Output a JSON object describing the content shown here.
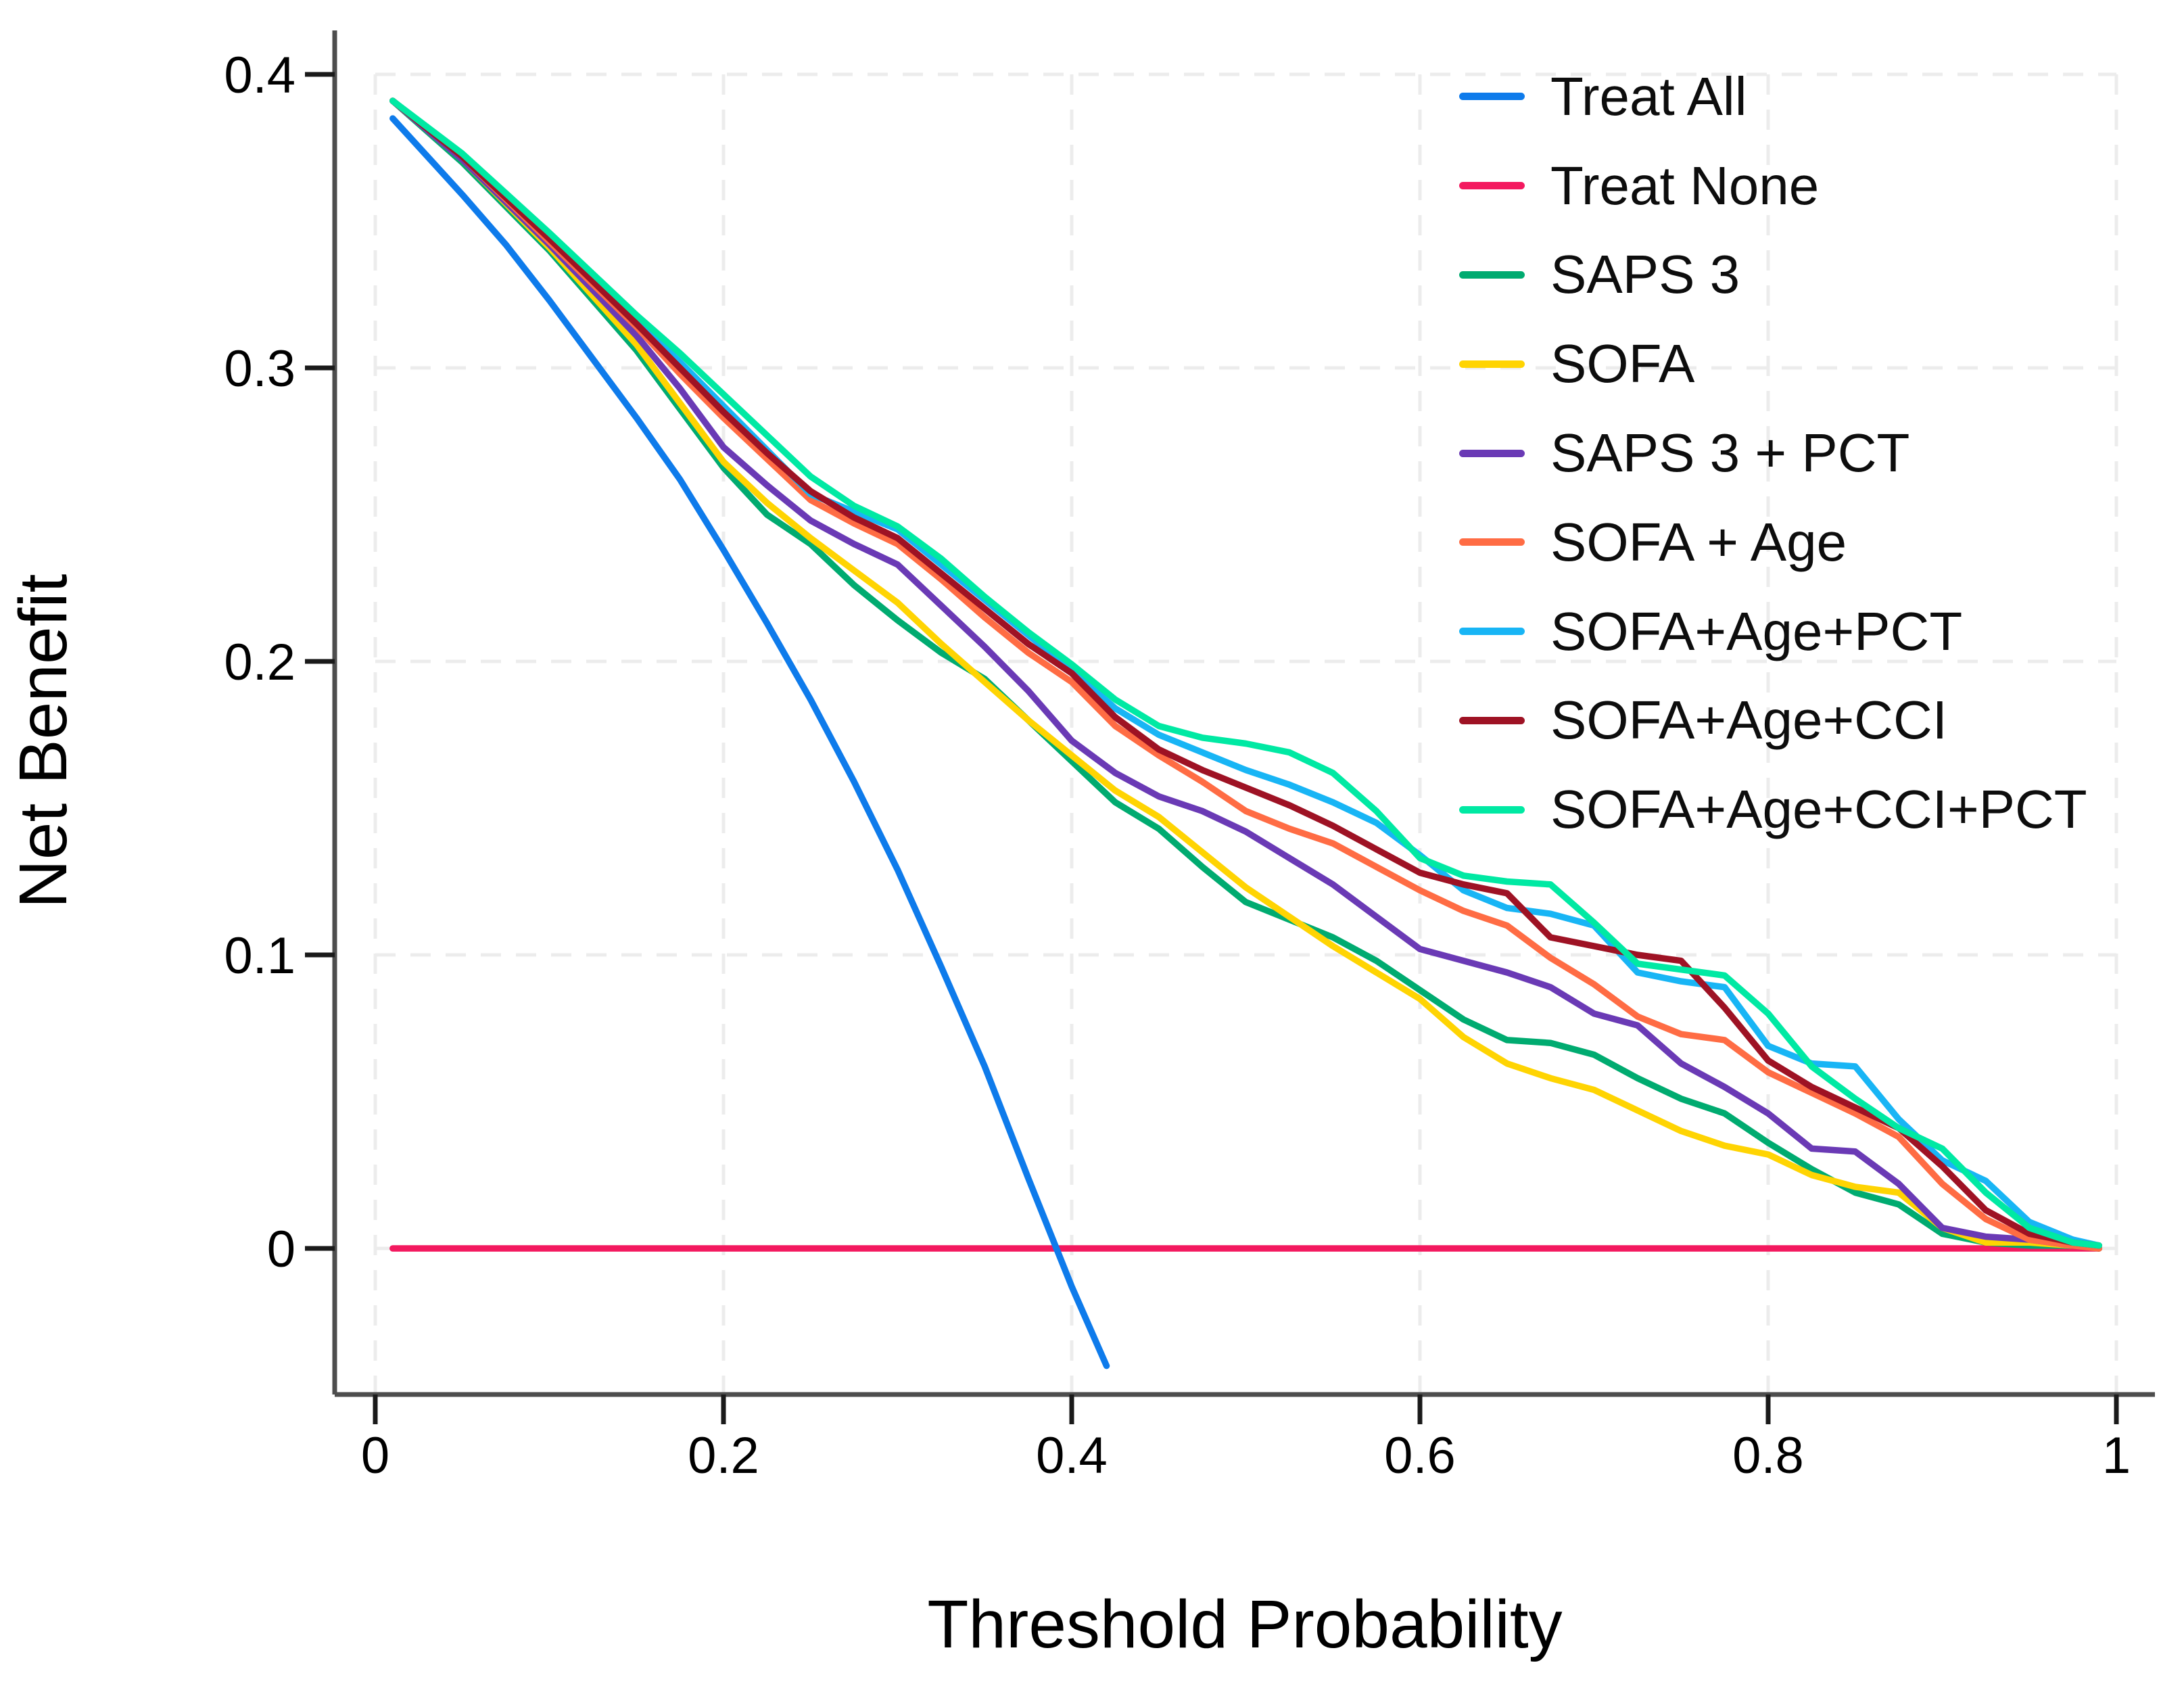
{
  "chart_data": {
    "type": "line",
    "title": "",
    "xlabel": "Threshold Probability",
    "ylabel": "Net Benefit",
    "xlim": [
      -0.023,
      1.016
    ],
    "ylim": [
      -0.05,
      0.415
    ],
    "grid": "light-dashed-at-ticks",
    "legend_position": "inside-top-right",
    "x_ticks": {
      "values": [
        0,
        0.2,
        0.4,
        0.6,
        0.8,
        1
      ],
      "labels": [
        "0",
        "0.2",
        "0.4",
        "0.6",
        "0.8",
        "1"
      ]
    },
    "y_ticks": {
      "values": [
        0,
        0.1,
        0.2,
        0.3,
        0.4
      ],
      "labels": [
        "0",
        "0.1",
        "0.2",
        "0.3",
        "0.4"
      ]
    },
    "shared_x": [
      0.01,
      0.05,
      0.1,
      0.15,
      0.175,
      0.2,
      0.225,
      0.25,
      0.275,
      0.3,
      0.325,
      0.35,
      0.375,
      0.4,
      0.425,
      0.45,
      0.475,
      0.5,
      0.525,
      0.55,
      0.575,
      0.6,
      0.625,
      0.65,
      0.675,
      0.7,
      0.725,
      0.75,
      0.775,
      0.8,
      0.825,
      0.85,
      0.875,
      0.9,
      0.925,
      0.95,
      0.975,
      0.99
    ],
    "series": [
      {
        "name": "Treat All",
        "color": "#0E7BEB",
        "x": [
          0.01,
          0.05,
          0.075,
          0.1,
          0.125,
          0.15,
          0.175,
          0.2,
          0.225,
          0.25,
          0.275,
          0.3,
          0.325,
          0.35,
          0.375,
          0.4,
          0.42
        ],
        "y": [
          0.385,
          0.359,
          0.342,
          0.323,
          0.303,
          0.283,
          0.262,
          0.238,
          0.213,
          0.187,
          0.159,
          0.129,
          0.096,
          0.062,
          0.024,
          -0.013,
          -0.04
        ]
      },
      {
        "name": "Treat None",
        "color": "#F3195F",
        "x": [
          0.01,
          0.99
        ],
        "y": [
          0,
          0
        ]
      },
      {
        "name": "SAPS 3",
        "color": "#00AB70",
        "y": [
          0.391,
          0.37,
          0.34,
          0.306,
          0.286,
          0.266,
          0.25,
          0.24,
          0.226,
          0.214,
          0.203,
          0.194,
          0.18,
          0.166,
          0.152,
          0.143,
          0.13,
          0.118,
          0.112,
          0.106,
          0.098,
          0.088,
          0.078,
          0.071,
          0.07,
          0.066,
          0.058,
          0.051,
          0.046,
          0.036,
          0.027,
          0.019,
          0.015,
          0.005,
          0.002,
          0.001,
          0.001,
          0.0
        ]
      },
      {
        "name": "SOFA",
        "color": "#FFD402",
        "y": [
          0.391,
          0.371,
          0.341,
          0.308,
          0.288,
          0.268,
          0.254,
          0.242,
          0.231,
          0.22,
          0.206,
          0.193,
          0.18,
          0.168,
          0.156,
          0.147,
          0.135,
          0.123,
          0.113,
          0.103,
          0.094,
          0.085,
          0.072,
          0.063,
          0.058,
          0.054,
          0.047,
          0.04,
          0.035,
          0.032,
          0.025,
          0.021,
          0.019,
          0.007,
          0.002,
          0.002,
          0.001,
          0.0
        ]
      },
      {
        "name": "SAPS 3 + PCT",
        "color": "#6A3AB5",
        "y": [
          0.391,
          0.371,
          0.342,
          0.311,
          0.293,
          0.273,
          0.26,
          0.248,
          0.24,
          0.233,
          0.219,
          0.205,
          0.19,
          0.173,
          0.162,
          0.154,
          0.149,
          0.142,
          0.133,
          0.124,
          0.113,
          0.102,
          0.098,
          0.094,
          0.089,
          0.08,
          0.076,
          0.063,
          0.055,
          0.046,
          0.034,
          0.033,
          0.022,
          0.007,
          0.004,
          0.003,
          0.001,
          0.0
        ]
      },
      {
        "name": "SOFA + Age",
        "color": "#FF6C44",
        "y": [
          0.391,
          0.372,
          0.343,
          0.314,
          0.298,
          0.283,
          0.269,
          0.255,
          0.247,
          0.24,
          0.228,
          0.215,
          0.203,
          0.193,
          0.178,
          0.168,
          0.159,
          0.149,
          0.143,
          0.138,
          0.13,
          0.122,
          0.115,
          0.11,
          0.099,
          0.09,
          0.079,
          0.073,
          0.071,
          0.06,
          0.053,
          0.046,
          0.038,
          0.022,
          0.01,
          0.003,
          0.001,
          0.0
        ]
      },
      {
        "name": "SOFA+Age+PCT",
        "color": "#18B5F5",
        "y": [
          0.391,
          0.372,
          0.345,
          0.316,
          0.302,
          0.287,
          0.272,
          0.257,
          0.251,
          0.245,
          0.233,
          0.221,
          0.209,
          0.197,
          0.184,
          0.175,
          0.169,
          0.163,
          0.158,
          0.152,
          0.145,
          0.134,
          0.122,
          0.116,
          0.114,
          0.11,
          0.094,
          0.091,
          0.089,
          0.069,
          0.063,
          0.062,
          0.044,
          0.03,
          0.023,
          0.009,
          0.003,
          0.001
        ]
      },
      {
        "name": "SOFA+Age+CCI",
        "color": "#9E1224",
        "y": [
          0.391,
          0.372,
          0.344,
          0.315,
          0.3,
          0.285,
          0.271,
          0.258,
          0.249,
          0.242,
          0.23,
          0.218,
          0.206,
          0.196,
          0.181,
          0.17,
          0.163,
          0.157,
          0.151,
          0.144,
          0.136,
          0.128,
          0.124,
          0.121,
          0.106,
          0.103,
          0.1,
          0.098,
          0.082,
          0.064,
          0.055,
          0.048,
          0.041,
          0.028,
          0.013,
          0.005,
          0.002,
          0.001
        ]
      },
      {
        "name": "SOFA+Age+CCI+PCT",
        "color": "#00E9A3",
        "y": [
          0.391,
          0.373,
          0.346,
          0.318,
          0.305,
          0.291,
          0.277,
          0.263,
          0.253,
          0.246,
          0.235,
          0.222,
          0.21,
          0.199,
          0.187,
          0.178,
          0.174,
          0.172,
          0.169,
          0.162,
          0.149,
          0.133,
          0.127,
          0.125,
          0.124,
          0.111,
          0.097,
          0.095,
          0.093,
          0.08,
          0.062,
          0.051,
          0.041,
          0.034,
          0.019,
          0.007,
          0.002,
          0.001
        ]
      }
    ],
    "draw_order": [
      "Treat None",
      "Treat All",
      "SAPS 3",
      "SOFA",
      "SAPS 3 + PCT",
      "SOFA + Age",
      "SOFA+Age+PCT",
      "SOFA+Age+CCI",
      "SOFA+Age+CCI+PCT"
    ]
  }
}
